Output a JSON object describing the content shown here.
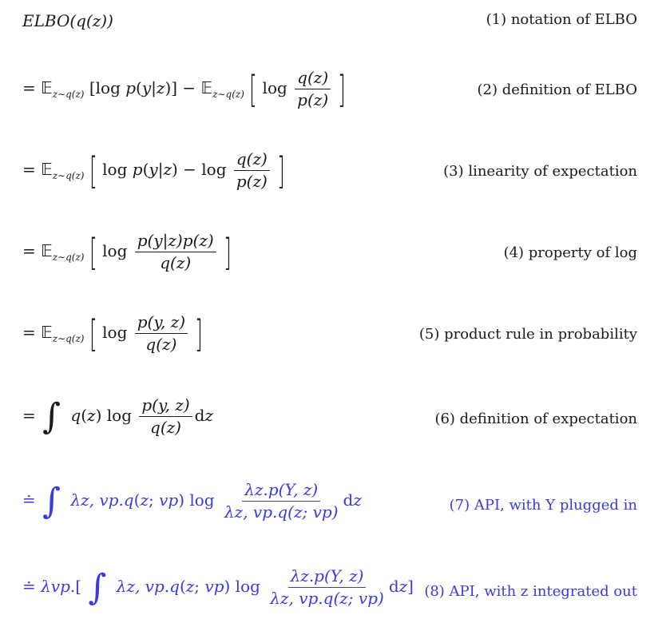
{
  "lines": [
    {
      "label": "(1) notation of ELBO",
      "expr_head": "ELBO(q(z))"
    },
    {
      "label": "(2) definition of ELBO"
    },
    {
      "label": "(3) linearity of expectation"
    },
    {
      "label": "(4) property of log"
    },
    {
      "label": "(5) product rule in probability"
    },
    {
      "label": "(6) definition of expectation"
    },
    {
      "label": "(7) API, with Y plugged in"
    },
    {
      "label": "(8) API, with z integrated out"
    }
  ],
  "colors": {
    "text": "#1a1a1a",
    "api": "#3a3ae0"
  }
}
